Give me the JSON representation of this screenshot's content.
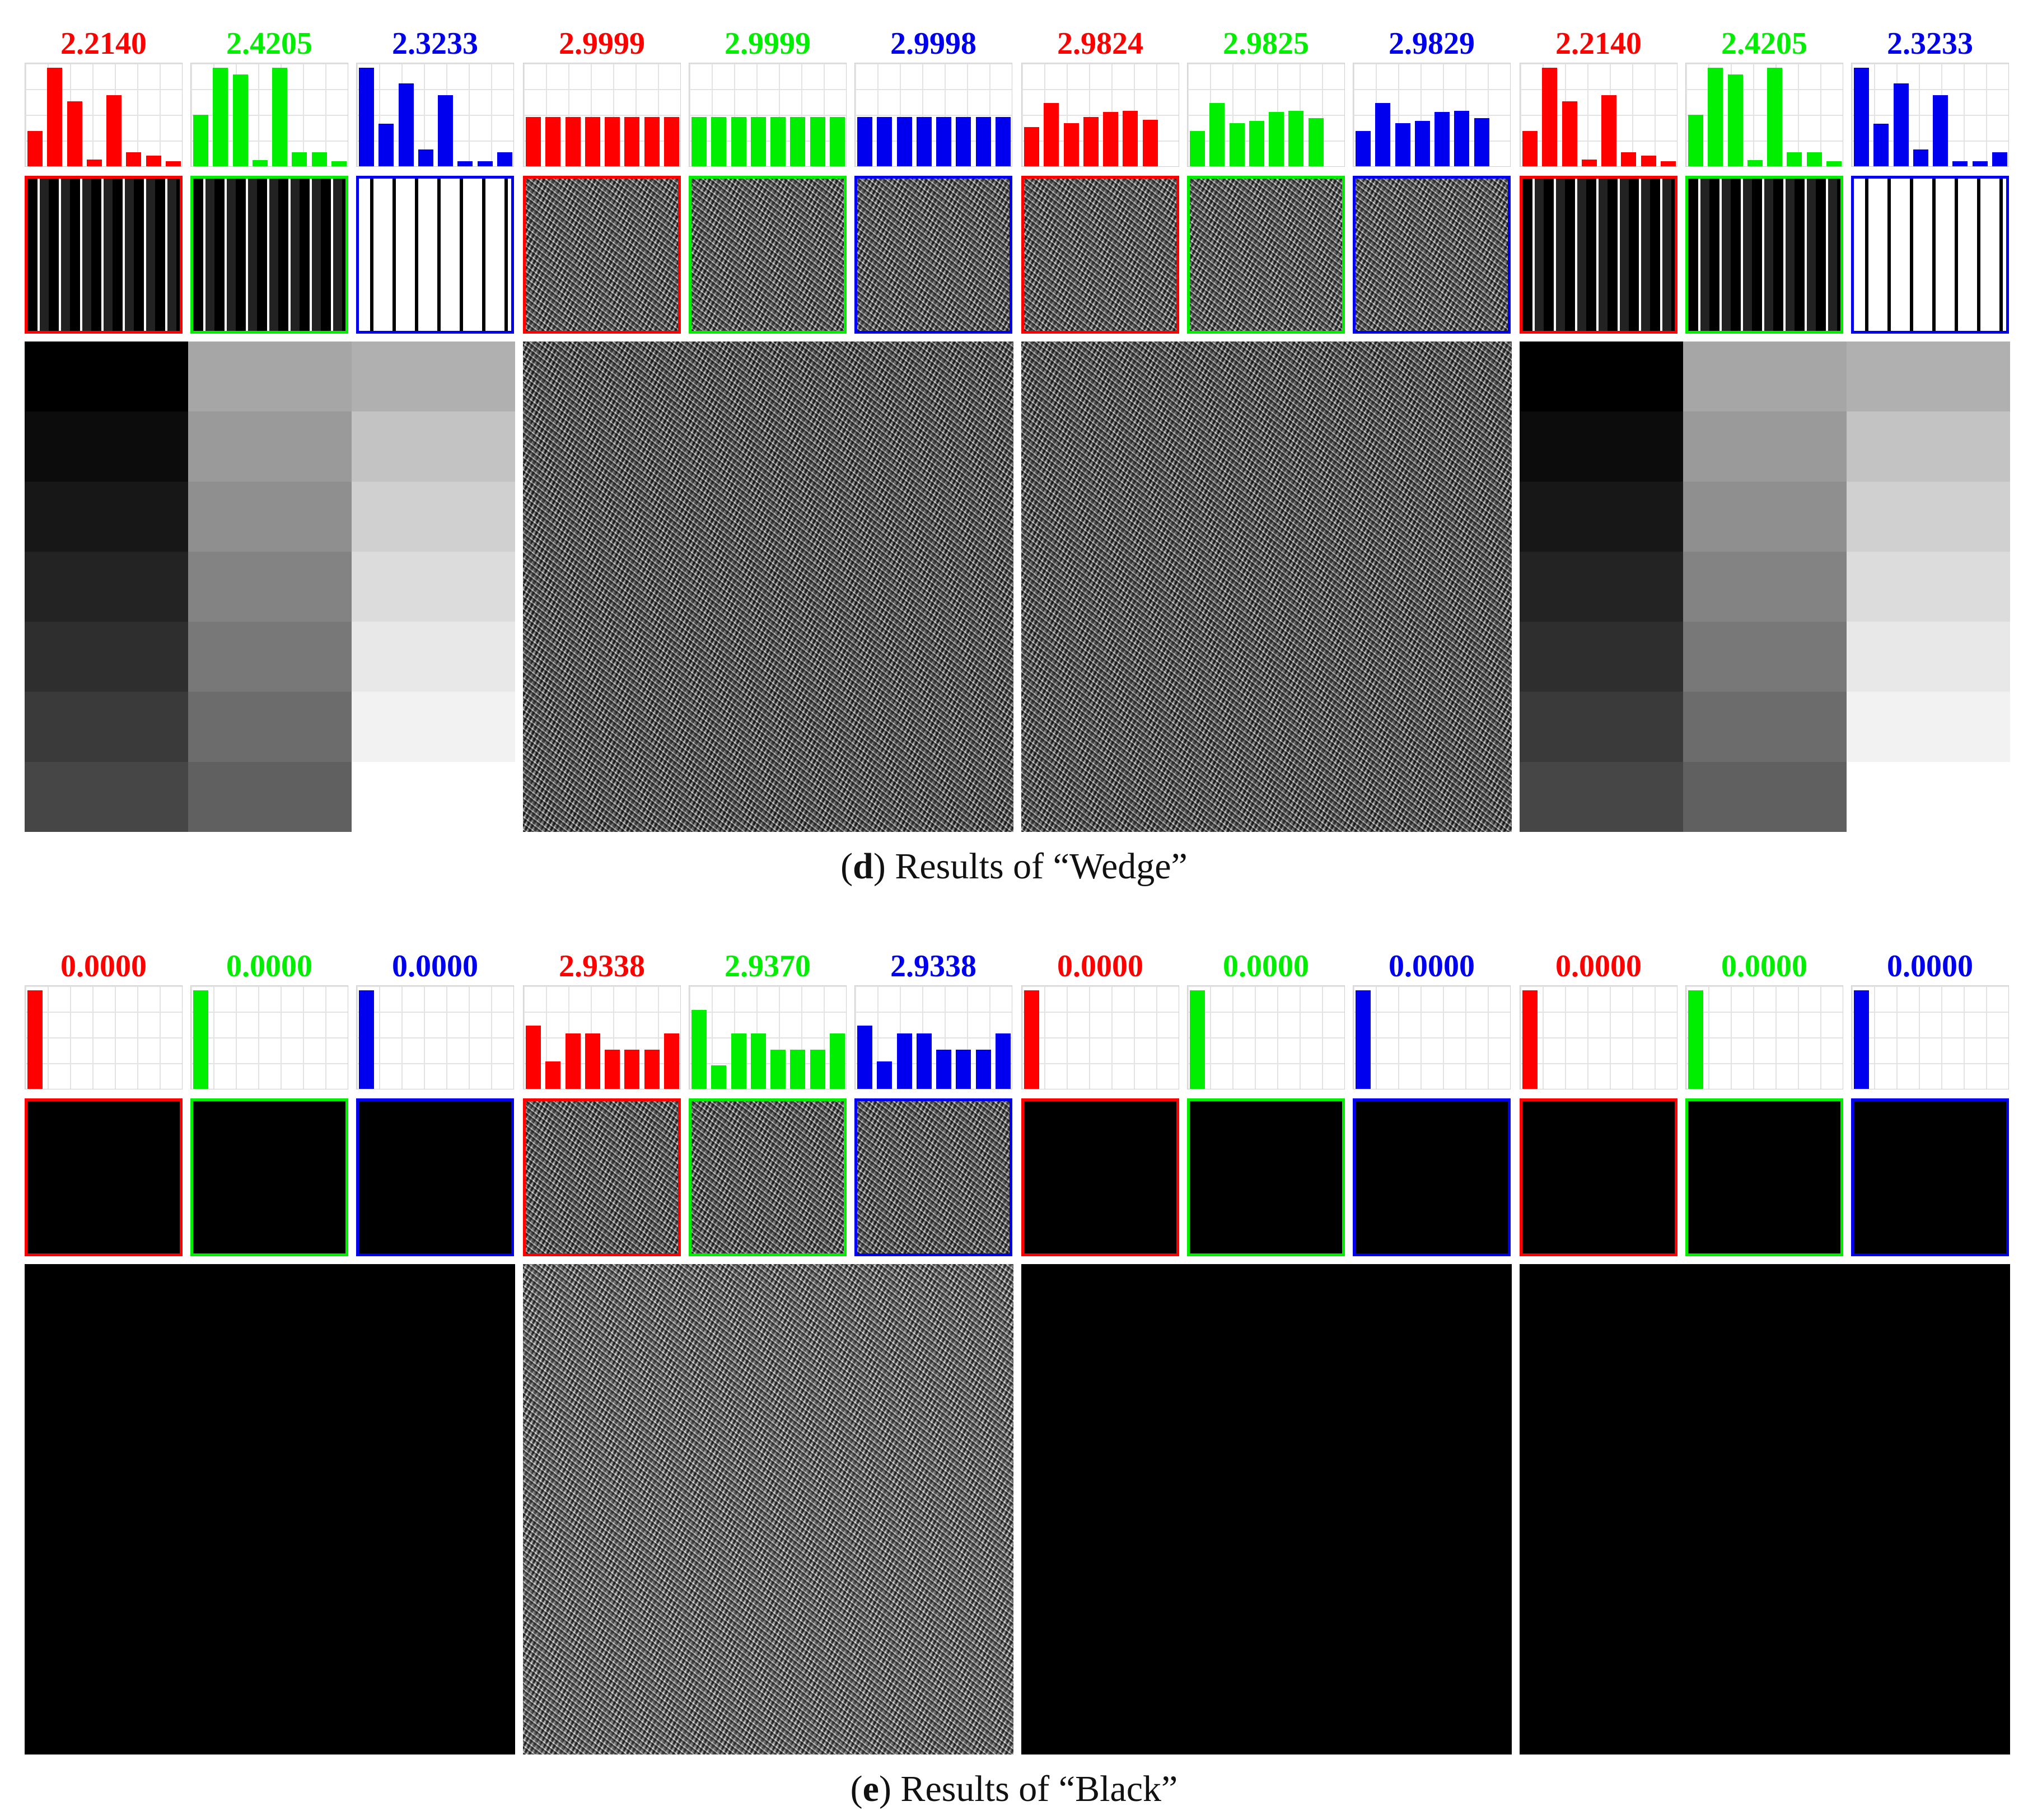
{
  "colors": {
    "red": "#ff0000",
    "green": "#00ee00",
    "blue": "#0000ee"
  },
  "panels": [
    {
      "id": "d",
      "caption_letter": "d",
      "caption_text": ") Results of “Wedge”",
      "entropy_values": [
        "2.2140",
        "2.4205",
        "2.3233",
        "2.9999",
        "2.9999",
        "2.9998",
        "2.9824",
        "2.9825",
        "2.9829",
        "2.2140",
        "2.4205",
        "2.3233"
      ],
      "histograms": [
        [
          0.36,
          1.0,
          0.66,
          0.07,
          0.72,
          0.14,
          0.11,
          0.05
        ],
        [
          0.52,
          1.0,
          0.93,
          0.06,
          1.0,
          0.14,
          0.14,
          0.05
        ],
        [
          1.0,
          0.43,
          0.84,
          0.17,
          0.72,
          0.05,
          0.05,
          0.14
        ],
        [
          0.5,
          0.5,
          0.5,
          0.5,
          0.5,
          0.5,
          0.5,
          0.5
        ],
        [
          0.5,
          0.5,
          0.5,
          0.5,
          0.5,
          0.5,
          0.5,
          0.5
        ],
        [
          0.5,
          0.5,
          0.5,
          0.5,
          0.5,
          0.5,
          0.5,
          0.5
        ],
        [
          0.4,
          0.64,
          0.44,
          0.5,
          0.55,
          0.56,
          0.47,
          0.0
        ],
        [
          0.36,
          0.64,
          0.44,
          0.46,
          0.55,
          0.56,
          0.49,
          0.0
        ],
        [
          0.36,
          0.64,
          0.44,
          0.46,
          0.55,
          0.56,
          0.49,
          0.0
        ],
        [
          0.36,
          1.0,
          0.66,
          0.07,
          0.72,
          0.14,
          0.11,
          0.05
        ],
        [
          0.52,
          1.0,
          0.93,
          0.06,
          1.0,
          0.14,
          0.14,
          0.05
        ],
        [
          1.0,
          0.43,
          0.84,
          0.17,
          0.72,
          0.05,
          0.05,
          0.14
        ]
      ]
    },
    {
      "id": "e",
      "caption_letter": "e",
      "caption_text": ") Results of “Black”",
      "entropy_values": [
        "0.0000",
        "0.0000",
        "0.0000",
        "2.9338",
        "2.9370",
        "2.9338",
        "0.0000",
        "0.0000",
        "0.0000",
        "0.0000",
        "0.0000",
        "0.0000"
      ],
      "histograms": [
        [
          1.0,
          0,
          0,
          0,
          0,
          0,
          0,
          0
        ],
        [
          1.0,
          0,
          0,
          0,
          0,
          0,
          0,
          0
        ],
        [
          1.0,
          0,
          0,
          0,
          0,
          0,
          0,
          0
        ],
        [
          0.64,
          0.28,
          0.56,
          0.56,
          0.4,
          0.4,
          0.4,
          0.56
        ],
        [
          0.8,
          0.24,
          0.56,
          0.56,
          0.4,
          0.4,
          0.4,
          0.56
        ],
        [
          0.64,
          0.28,
          0.56,
          0.56,
          0.4,
          0.4,
          0.4,
          0.56
        ],
        [
          1.0,
          0,
          0,
          0,
          0,
          0,
          0,
          0
        ],
        [
          1.0,
          0,
          0,
          0,
          0,
          0,
          0,
          0
        ],
        [
          1.0,
          0,
          0,
          0,
          0,
          0,
          0,
          0
        ],
        [
          1.0,
          0,
          0,
          0,
          0,
          0,
          0,
          0
        ],
        [
          1.0,
          0,
          0,
          0,
          0,
          0,
          0,
          0
        ],
        [
          1.0,
          0,
          0,
          0,
          0,
          0,
          0,
          0
        ]
      ]
    }
  ]
}
